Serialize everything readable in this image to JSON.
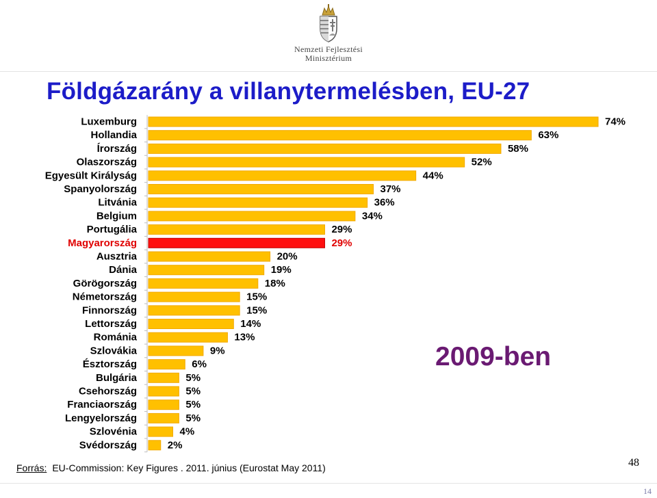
{
  "header": {
    "ministry_line1": "Nemzeti Fejlesztési",
    "ministry_line2": "Minisztérium"
  },
  "title": "Földgázarány a villanytermelésben, EU-27",
  "year_label": "2009-ben",
  "source": {
    "label": "Forrás:",
    "text": "EU-Commission: Key Figures . 2011. június (Eurostat May 2011)"
  },
  "page_number": "48",
  "footer_page": "14",
  "colors": {
    "bar": "#ffc000",
    "bar_edge": "#f2a900",
    "highlight": "#ff1010",
    "highlight_edge": "#c00000",
    "title": "#1c1cc8",
    "year": "#6a1a72"
  },
  "chart_data": {
    "type": "bar",
    "orientation": "horizontal",
    "title": "Földgázarány a villanytermelésben, EU-27",
    "xlabel": "",
    "ylabel": "",
    "xlim": [
      0,
      74
    ],
    "unit": "%",
    "highlight": "Magyarország",
    "categories": [
      "Luxemburg",
      "Hollandia",
      "Írország",
      "Olaszország",
      "Egyesült Királyság",
      "Spanyolország",
      "Litvánia",
      "Belgium",
      "Portugália",
      "Magyarország",
      "Ausztria",
      "Dánia",
      "Görögország",
      "Németország",
      "Finnország",
      "Lettország",
      "Románia",
      "Szlovákia",
      "Észtország",
      "Bulgária",
      "Csehország",
      "Franciaország",
      "Lengyelország",
      "Szlovénia",
      "Svédország"
    ],
    "values": [
      74,
      63,
      58,
      52,
      44,
      37,
      36,
      34,
      29,
      29,
      20,
      19,
      18,
      15,
      15,
      14,
      13,
      9,
      6,
      5,
      5,
      5,
      5,
      4,
      2
    ],
    "labels": [
      "74%",
      "63%",
      "58%",
      "52%",
      "44%",
      "37%",
      "36%",
      "34%",
      "29%",
      "29%",
      "20%",
      "19%",
      "18%",
      "15%",
      "15%",
      "14%",
      "13%",
      "9%",
      "6%",
      "5%",
      "5%",
      "5%",
      "5%",
      "4%",
      "2%"
    ]
  }
}
